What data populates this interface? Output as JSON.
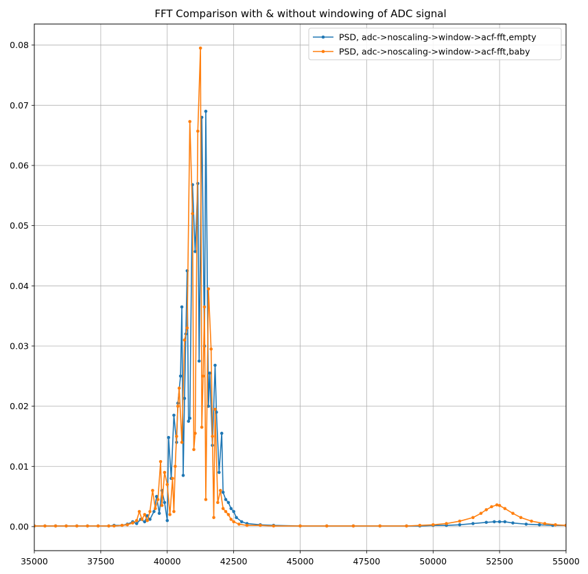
{
  "chart_data": {
    "type": "line",
    "title": "FFT Comparison with & without windowing of ADC signal",
    "xlabel": "",
    "ylabel": "",
    "xlim": [
      35000,
      55000
    ],
    "ylim": [
      -0.004,
      0.0835
    ],
    "xticks": [
      35000,
      37500,
      40000,
      42500,
      45000,
      47500,
      50000,
      52500,
      55000
    ],
    "xtick_labels": [
      "35000",
      "37500",
      "40000",
      "42500",
      "45000",
      "47500",
      "50000",
      "52500",
      "55000"
    ],
    "yticks": [
      0,
      0.01,
      0.02,
      0.03,
      0.04,
      0.05,
      0.06,
      0.07,
      0.08
    ],
    "ytick_labels": [
      "0.00",
      "0.01",
      "0.02",
      "0.03",
      "0.04",
      "0.05",
      "0.06",
      "0.07",
      "0.08"
    ],
    "grid": true,
    "legend_position": "top-right",
    "series": [
      {
        "name": "PSD, adc->noscaling->window->acf-fft,empty",
        "color": "#1f77b4",
        "points": [
          [
            35000,
            0.0001
          ],
          [
            35400,
            0.0001
          ],
          [
            35800,
            0.0001
          ],
          [
            36200,
            0.0001
          ],
          [
            36600,
            0.0001
          ],
          [
            37000,
            0.0001
          ],
          [
            37400,
            0.0001
          ],
          [
            37800,
            0.0001
          ],
          [
            38000,
            0.0002
          ],
          [
            38300,
            0.0002
          ],
          [
            38500,
            0.0004
          ],
          [
            38700,
            0.0008
          ],
          [
            38850,
            0.0005
          ],
          [
            39000,
            0.0012
          ],
          [
            39150,
            0.0008
          ],
          [
            39250,
            0.0018
          ],
          [
            39350,
            0.0012
          ],
          [
            39500,
            0.0025
          ],
          [
            39600,
            0.005
          ],
          [
            39700,
            0.0022
          ],
          [
            39800,
            0.006
          ],
          [
            39900,
            0.004
          ],
          [
            40000,
            0.001
          ],
          [
            40050,
            0.0148
          ],
          [
            40150,
            0.008
          ],
          [
            40250,
            0.0185
          ],
          [
            40350,
            0.014
          ],
          [
            40400,
            0.0205
          ],
          [
            40500,
            0.025
          ],
          [
            40550,
            0.0365
          ],
          [
            40600,
            0.0085
          ],
          [
            40650,
            0.0213
          ],
          [
            40700,
            0.032
          ],
          [
            40750,
            0.0425
          ],
          [
            40800,
            0.0175
          ],
          [
            40850,
            0.018
          ],
          [
            40950,
            0.0568
          ],
          [
            41050,
            0.0457
          ],
          [
            41150,
            0.057
          ],
          [
            41200,
            0.0275
          ],
          [
            41300,
            0.068
          ],
          [
            41400,
            0.03
          ],
          [
            41450,
            0.069
          ],
          [
            41550,
            0.02
          ],
          [
            41600,
            0.0255
          ],
          [
            41700,
            0.0135
          ],
          [
            41800,
            0.0268
          ],
          [
            41850,
            0.019
          ],
          [
            41950,
            0.009
          ],
          [
            42050,
            0.0155
          ],
          [
            42100,
            0.0057
          ],
          [
            42200,
            0.0045
          ],
          [
            42300,
            0.004
          ],
          [
            42400,
            0.003
          ],
          [
            42500,
            0.0025
          ],
          [
            42600,
            0.0015
          ],
          [
            42800,
            0.0008
          ],
          [
            43000,
            0.0005
          ],
          [
            43500,
            0.0003
          ],
          [
            44000,
            0.0002
          ],
          [
            45000,
            0.0001
          ],
          [
            46000,
            0.0001
          ],
          [
            47000,
            0.0001
          ],
          [
            48000,
            0.0001
          ],
          [
            49000,
            0.0001
          ],
          [
            49500,
            0.0001
          ],
          [
            50000,
            0.0002
          ],
          [
            50500,
            0.0002
          ],
          [
            51000,
            0.0003
          ],
          [
            51500,
            0.0005
          ],
          [
            52000,
            0.0007
          ],
          [
            52300,
            0.0008
          ],
          [
            52500,
            0.0008
          ],
          [
            52700,
            0.0008
          ],
          [
            53000,
            0.0006
          ],
          [
            53500,
            0.0004
          ],
          [
            54000,
            0.0003
          ],
          [
            54500,
            0.0002
          ],
          [
            55000,
            0.0002
          ]
        ]
      },
      {
        "name": "PSD, adc->noscaling->window->acf-fft,baby",
        "color": "#ff7f0e",
        "points": [
          [
            35000,
            0.0001
          ],
          [
            35400,
            0.0001
          ],
          [
            35800,
            0.0001
          ],
          [
            36200,
            0.0001
          ],
          [
            36600,
            0.0001
          ],
          [
            37000,
            0.0001
          ],
          [
            37400,
            0.0001
          ],
          [
            37800,
            0.0001
          ],
          [
            38000,
            0.0001
          ],
          [
            38300,
            0.0002
          ],
          [
            38500,
            0.0003
          ],
          [
            38700,
            0.0006
          ],
          [
            38850,
            0.001
          ],
          [
            38950,
            0.0025
          ],
          [
            39050,
            0.0012
          ],
          [
            39150,
            0.002
          ],
          [
            39250,
            0.001
          ],
          [
            39350,
            0.0025
          ],
          [
            39450,
            0.006
          ],
          [
            39550,
            0.003
          ],
          [
            39650,
            0.0045
          ],
          [
            39750,
            0.0108
          ],
          [
            39800,
            0.0035
          ],
          [
            39900,
            0.009
          ],
          [
            40000,
            0.007
          ],
          [
            40100,
            0.002
          ],
          [
            40200,
            0.008
          ],
          [
            40250,
            0.0025
          ],
          [
            40300,
            0.01
          ],
          [
            40350,
            0.015
          ],
          [
            40400,
            0.02
          ],
          [
            40450,
            0.023
          ],
          [
            40550,
            0.014
          ],
          [
            40650,
            0.031
          ],
          [
            40750,
            0.033
          ],
          [
            40850,
            0.0673
          ],
          [
            40950,
            0.052
          ],
          [
            41000,
            0.0128
          ],
          [
            41050,
            0.0155
          ],
          [
            41150,
            0.0657
          ],
          [
            41250,
            0.0795
          ],
          [
            41300,
            0.0165
          ],
          [
            41350,
            0.025
          ],
          [
            41400,
            0.0365
          ],
          [
            41450,
            0.0045
          ],
          [
            41550,
            0.0395
          ],
          [
            41650,
            0.0295
          ],
          [
            41700,
            0.015
          ],
          [
            41750,
            0.0015
          ],
          [
            41800,
            0.0195
          ],
          [
            41900,
            0.004
          ],
          [
            42000,
            0.006
          ],
          [
            42100,
            0.003
          ],
          [
            42200,
            0.0025
          ],
          [
            42300,
            0.002
          ],
          [
            42400,
            0.0012
          ],
          [
            42500,
            0.0008
          ],
          [
            42700,
            0.0004
          ],
          [
            43000,
            0.0002
          ],
          [
            43500,
            0.0002
          ],
          [
            44000,
            0.0001
          ],
          [
            45000,
            0.0001
          ],
          [
            46000,
            0.0001
          ],
          [
            47000,
            0.0001
          ],
          [
            48000,
            0.0001
          ],
          [
            49000,
            0.0001
          ],
          [
            49500,
            0.0002
          ],
          [
            50000,
            0.0003
          ],
          [
            50500,
            0.0005
          ],
          [
            51000,
            0.0009
          ],
          [
            51500,
            0.0015
          ],
          [
            51800,
            0.0022
          ],
          [
            52000,
            0.0028
          ],
          [
            52200,
            0.0033
          ],
          [
            52400,
            0.0036
          ],
          [
            52500,
            0.0035
          ],
          [
            52700,
            0.003
          ],
          [
            53000,
            0.0022
          ],
          [
            53300,
            0.0015
          ],
          [
            53700,
            0.0009
          ],
          [
            54200,
            0.0005
          ],
          [
            54600,
            0.0003
          ],
          [
            55000,
            0.0002
          ]
        ]
      }
    ]
  }
}
